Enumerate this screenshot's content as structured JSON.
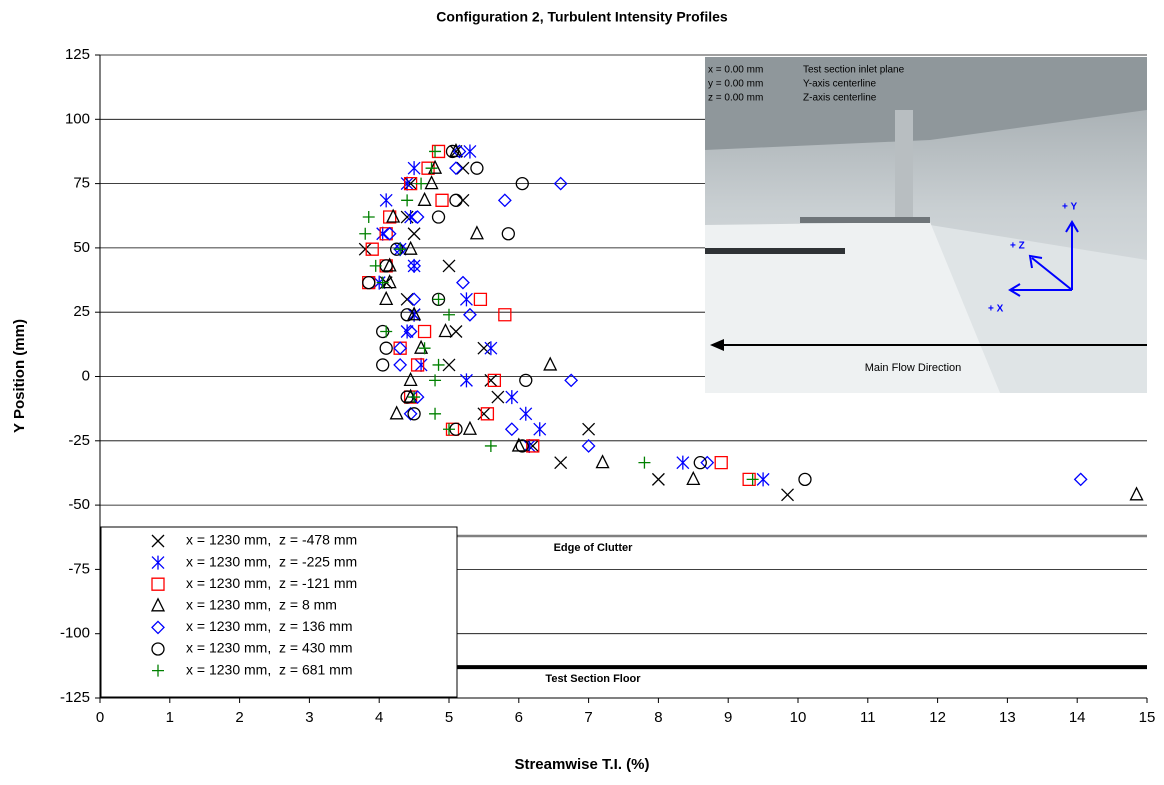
{
  "chart_data": {
    "type": "scatter",
    "title": "Configuration 2, Turbulent Intensity Profiles",
    "x_label": "Streamwise T.I. (%)",
    "y_label": "Y Position (mm)",
    "xlim": [
      0,
      15
    ],
    "xticks": [
      0,
      1,
      2,
      3,
      4,
      5,
      6,
      7,
      8,
      9,
      10,
      11,
      12,
      13,
      14,
      15
    ],
    "ylim": [
      -125,
      125
    ],
    "yticks": [
      -125,
      -100,
      -75,
      -50,
      -25,
      0,
      25,
      50,
      75,
      100,
      125
    ],
    "grid": true,
    "legend": "lower left",
    "series": [
      {
        "name": "x = 1230 mm,  z = -478 mm",
        "color": "#000000",
        "marker": "x",
        "x": [
          5.1,
          5.2,
          4.45,
          5.2,
          4.4,
          4.5,
          3.8,
          5.0,
          4.1,
          4.4,
          4.5,
          5.1,
          5.5,
          5.0,
          5.6,
          5.7,
          5.5,
          7.0,
          6.2,
          6.6,
          8.0,
          9.85
        ],
        "y": [
          87.5,
          81,
          75,
          68.5,
          62,
          55.5,
          49.5,
          43,
          36.5,
          30,
          24,
          17.5,
          11,
          4.5,
          -1.5,
          -8,
          -14.5,
          -20.5,
          -27,
          -33.5,
          -40,
          -46
        ]
      },
      {
        "name": "x = 1230 mm,  z = -225 mm",
        "color": "#0000ff",
        "marker": "asterisk",
        "x": [
          5.3,
          4.5,
          4.4,
          4.1,
          4.45,
          4.05,
          4.3,
          4.5,
          4.0,
          5.25,
          4.5,
          4.4,
          5.6,
          4.6,
          5.25,
          5.9,
          6.1,
          6.3,
          6.15,
          8.35,
          9.5
        ],
        "y": [
          87.5,
          81,
          75,
          68.5,
          62,
          55.5,
          49.5,
          43,
          36.5,
          30,
          24,
          17.5,
          11,
          4.5,
          -1.5,
          -8,
          -14.5,
          -20.5,
          -27,
          -33.5,
          -40
        ]
      },
      {
        "name": "x = 1230 mm,  z = -121 mm",
        "color": "#ff0000",
        "marker": "square",
        "x": [
          4.85,
          4.7,
          4.45,
          4.9,
          4.15,
          4.1,
          3.9,
          4.1,
          3.85,
          5.45,
          5.8,
          4.65,
          4.3,
          4.55,
          5.65,
          4.45,
          5.55,
          5.05,
          6.2,
          8.9,
          9.3
        ],
        "y": [
          87.5,
          81,
          75,
          68.5,
          62,
          55.5,
          49.5,
          43,
          36.5,
          30,
          24,
          17.5,
          11,
          4.5,
          -1.5,
          -8,
          -14.5,
          -20.5,
          -27,
          -33.5,
          -40
        ]
      },
      {
        "name": "x = 1230 mm,  z = 8 mm",
        "color": "#000000",
        "marker": "triangle",
        "x": [
          5.1,
          4.8,
          4.75,
          4.65,
          4.2,
          5.4,
          4.45,
          4.15,
          4.15,
          4.1,
          4.5,
          4.95,
          4.6,
          6.45,
          4.45,
          4.45,
          4.25,
          5.3,
          6.0,
          7.2,
          8.5,
          14.85
        ],
        "y": [
          87.5,
          81,
          75,
          68.5,
          62,
          55.5,
          49.5,
          43,
          36.5,
          30,
          24,
          17.5,
          11,
          4.5,
          -1.5,
          -8,
          -14.5,
          -20.5,
          -27,
          -33.5,
          -40,
          -46
        ]
      },
      {
        "name": "x = 1230 mm,  z = 136 mm",
        "color": "#0000ff",
        "marker": "diamond",
        "x": [
          5.15,
          5.1,
          6.6,
          5.8,
          4.55,
          4.15,
          4.3,
          4.5,
          5.2,
          4.5,
          5.3,
          4.45,
          4.3,
          4.3,
          6.75,
          4.55,
          4.45,
          5.9,
          7.0,
          8.7,
          14.05
        ],
        "y": [
          87.5,
          81,
          75,
          68.5,
          62,
          55.5,
          49.5,
          43,
          36.5,
          30,
          24,
          17.5,
          11,
          4.5,
          -1.5,
          -8,
          -14.5,
          -20.5,
          -27,
          -33.5,
          -40
        ]
      },
      {
        "name": "x = 1230 mm,  z = 430 mm",
        "color": "#000000",
        "marker": "circle",
        "x": [
          5.05,
          5.4,
          6.05,
          5.1,
          4.85,
          5.85,
          4.25,
          4.1,
          3.85,
          4.85,
          4.4,
          4.05,
          4.1,
          4.05,
          6.1,
          4.4,
          4.5,
          5.1,
          6.05,
          8.6,
          10.1
        ],
        "y": [
          87.5,
          81,
          75,
          68.5,
          62,
          55.5,
          49.5,
          43,
          36.5,
          30,
          24,
          17.5,
          11,
          4.5,
          -1.5,
          -8,
          -14.5,
          -20.5,
          -27,
          -33.5,
          -40
        ]
      },
      {
        "name": "x = 1230 mm,  z = 681 mm",
        "color": "#008000",
        "marker": "plus",
        "x": [
          4.8,
          4.75,
          4.6,
          4.4,
          3.85,
          3.8,
          4.3,
          3.95,
          4.05,
          4.85,
          5.0,
          4.1,
          4.65,
          4.85,
          4.8,
          4.5,
          4.8,
          5.0,
          5.6,
          7.8,
          9.35
        ],
        "y": [
          87.5,
          81,
          75,
          68.5,
          62,
          55.5,
          49.5,
          43,
          36.5,
          30,
          24,
          17.5,
          11,
          4.5,
          -1.5,
          -8,
          -14.5,
          -20.5,
          -27,
          -33.5,
          -40
        ]
      }
    ],
    "reference_lines": [
      {
        "value": -62,
        "label": "Edge of Clutter",
        "color": "#808080"
      },
      {
        "value": -113,
        "label": "Test Section Floor",
        "color": "#000000"
      }
    ]
  },
  "inset": {
    "notes": [
      [
        "x = 0.00 mm",
        "Test section inlet plane"
      ],
      [
        "y = 0.00 mm",
        "Y-axis centerline"
      ],
      [
        "z = 0.00 mm",
        "Z-axis centerline"
      ]
    ],
    "axis_labels": [
      "+ Y",
      "+ Z",
      "+ X"
    ],
    "flow_label": "Main Flow Direction"
  }
}
